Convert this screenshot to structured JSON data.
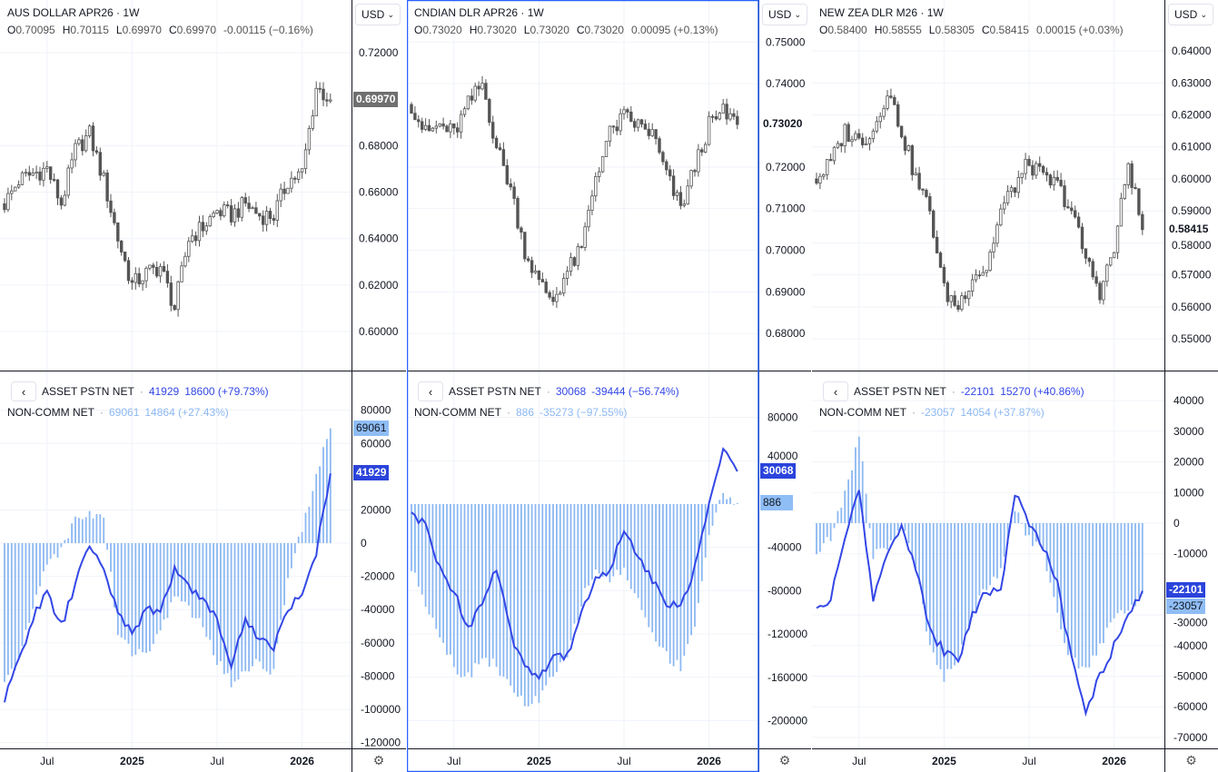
{
  "months": [
    "2024-04",
    "2024-05",
    "2024-06",
    "2024-07",
    "2024-08",
    "2024-09",
    "2024-10",
    "2024-11",
    "2024-12",
    "2025-01",
    "2025-02",
    "2025-03",
    "2025-04",
    "2025-05",
    "2025-06",
    "2025-07",
    "2025-08",
    "2025-09",
    "2025-10",
    "2025-11",
    "2025-12",
    "2026-01",
    "2026-02",
    "2026-03"
  ],
  "colors": {
    "asset_line": "#3347e6",
    "noncomm_bars": "#8cb8f2",
    "candle": "#555555",
    "selected_border": "#2962ff",
    "asset_box": "#2b44db",
    "noncomm_box": "#8fbdf5",
    "last_price_box": "#6f6f6f"
  },
  "icons": {
    "back": "chevron-left-icon",
    "dropdown": "chevron-down-icon",
    "settings": "gear-icon"
  },
  "panes": [
    {
      "symbol": "AUS DOLLAR APR26",
      "interval": "1W",
      "currency": "USD",
      "ohlc": {
        "o_label": "O",
        "o": "0.70095",
        "h_label": "H",
        "h": "0.70115",
        "l_label": "L",
        "l": "0.69970",
        "c_label": "C",
        "c": "0.69970",
        "change": "-0.00115 (−0.16%)"
      },
      "last_price": "0.69970",
      "price_ticks": [
        "0.72000",
        "0.68000",
        "0.66000",
        "0.64000",
        "0.62000",
        "0.60000"
      ],
      "asset": {
        "label": "ASSET PSTN NET",
        "value": "41929",
        "change": "18600 (+79.73%)"
      },
      "noncomm": {
        "label": "NON-COMM NET",
        "value": "69061",
        "change": "14864 (+27.43%)"
      },
      "ind_ticks": [
        "80000",
        "60000",
        "20000",
        "0",
        "-20000",
        "-40000",
        "-60000",
        "-80000",
        "-100000",
        "-120000"
      ],
      "time_labels": [
        "Jul",
        "2025",
        "Jul",
        "2026"
      ]
    },
    {
      "symbol": "CNDIAN DLR APR26",
      "interval": "1W",
      "currency": "USD",
      "ohlc": {
        "o_label": "O",
        "o": "0.73020",
        "h_label": "H",
        "h": "0.73020",
        "l_label": "L",
        "l": "0.73020",
        "c_label": "C",
        "c": "0.73020",
        "change": "0.00095 (+0.13%)"
      },
      "last_price": "0.73020",
      "price_ticks": [
        "0.75000",
        "0.74000",
        "0.72000",
        "0.71000",
        "0.70000",
        "0.69000",
        "0.68000"
      ],
      "asset": {
        "label": "ASSET PSTN NET",
        "value": "30068",
        "change": "-39444 (−56.74%)"
      },
      "noncomm": {
        "label": "NON-COMM NET",
        "value": "886",
        "change": "-35273 (−97.55%)"
      },
      "ind_ticks": [
        "80000",
        "40000",
        "-40000",
        "-80000",
        "-120000",
        "-160000",
        "-200000"
      ],
      "time_labels": [
        "Jul",
        "2025",
        "Jul",
        "2026"
      ]
    },
    {
      "symbol": "NEW ZEA DLR M26",
      "interval": "1W",
      "currency": "USD",
      "ohlc": {
        "o_label": "O",
        "o": "0.58400",
        "h_label": "H",
        "h": "0.58555",
        "l_label": "L",
        "l": "0.58305",
        "c_label": "C",
        "c": "0.58415",
        "change": "0.00015 (+0.03%)"
      },
      "last_price": "0.58415",
      "price_ticks": [
        "0.64000",
        "0.63000",
        "0.62000",
        "0.61000",
        "0.60000",
        "0.59000",
        "0.58000",
        "0.57000",
        "0.56000",
        "0.55000"
      ],
      "asset": {
        "label": "ASSET PSTN NET",
        "value": "-22101",
        "change": "15270 (+40.86%)"
      },
      "noncomm": {
        "label": "NON-COMM NET",
        "value": "-23057",
        "change": "14054 (+37.87%)"
      },
      "ind_ticks": [
        "40000",
        "30000",
        "20000",
        "10000",
        "0",
        "-10000",
        "-30000",
        "-40000",
        "-50000",
        "-60000",
        "-70000"
      ],
      "time_labels": [
        "Jul",
        "2025",
        "Jul",
        "2026"
      ]
    }
  ],
  "chart_data": [
    {
      "type": "candlestick",
      "ylim": [
        0.5832,
        0.7427
      ],
      "ind_ylim": [
        -123500,
        103300
      ],
      "close": [
        0.655,
        0.665,
        0.668,
        0.67,
        0.655,
        0.678,
        0.685,
        0.665,
        0.64,
        0.62,
        0.625,
        0.628,
        0.61,
        0.64,
        0.645,
        0.652,
        0.65,
        0.655,
        0.65,
        0.65,
        0.665,
        0.668,
        0.705,
        0.6997
      ],
      "asset": [
        -95000,
        -70000,
        -45000,
        -30000,
        -50000,
        -25000,
        0,
        -18000,
        -40000,
        -55000,
        -40000,
        -42000,
        -15000,
        -25000,
        -35000,
        -45000,
        -75000,
        -45000,
        -58000,
        -62000,
        -40000,
        -30000,
        -5000,
        41929
      ],
      "noncomm": [
        -85000,
        -70000,
        -40000,
        -10000,
        -5000,
        15000,
        18000,
        15000,
        -55000,
        -65000,
        -65000,
        -55000,
        -30000,
        -40000,
        -50000,
        -70000,
        -85000,
        -75000,
        -72000,
        -78000,
        -20000,
        10000,
        40000,
        69061
      ]
    },
    {
      "type": "candlestick",
      "ylim": [
        0.6711,
        0.7601
      ],
      "ind_ylim": [
        -225600,
        122400
      ],
      "close": [
        0.735,
        0.728,
        0.73,
        0.728,
        0.735,
        0.74,
        0.725,
        0.715,
        0.7,
        0.692,
        0.688,
        0.695,
        0.7,
        0.718,
        0.728,
        0.732,
        0.73,
        0.728,
        0.718,
        0.71,
        0.72,
        0.73,
        0.733,
        0.7302
      ],
      "asset": [
        -10000,
        -20000,
        -60000,
        -80000,
        -115000,
        -90000,
        -60000,
        -120000,
        -150000,
        -160000,
        -140000,
        -140000,
        -100000,
        -70000,
        -60000,
        -25000,
        -50000,
        -70000,
        -90000,
        -95000,
        -60000,
        0,
        50000,
        30068
      ],
      "noncomm": [
        -60000,
        -90000,
        -120000,
        -150000,
        -160000,
        -140000,
        -150000,
        -170000,
        -185000,
        -180000,
        -160000,
        -140000,
        -90000,
        -60000,
        -70000,
        -60000,
        -90000,
        -120000,
        -140000,
        -150000,
        -110000,
        -30000,
        10000,
        886
      ]
    },
    {
      "type": "candlestick",
      "ylim": [
        0.5401,
        0.6559
      ],
      "ind_ylim": [
        -73590,
        49550
      ],
      "close": [
        0.6,
        0.605,
        0.615,
        0.612,
        0.615,
        0.628,
        0.615,
        0.6,
        0.59,
        0.565,
        0.56,
        0.57,
        0.572,
        0.59,
        0.598,
        0.605,
        0.6,
        0.598,
        0.59,
        0.575,
        0.565,
        0.578,
        0.605,
        0.58415
      ],
      "asset": [
        -28000,
        -25000,
        -5000,
        11000,
        -25000,
        -10000,
        0,
        -15000,
        -35000,
        -42000,
        -45000,
        -30000,
        -22000,
        -22000,
        10000,
        0,
        -8000,
        -20000,
        -45000,
        -62000,
        -50000,
        -40000,
        -30000,
        -22101
      ],
      "noncomm": [
        -10000,
        -5000,
        10000,
        28000,
        -10000,
        -8000,
        0,
        -15000,
        -40000,
        -50000,
        -45000,
        -30000,
        -20000,
        -15000,
        5000,
        -5000,
        -10000,
        -30000,
        -45000,
        -48000,
        -40000,
        -30000,
        -28000,
        -23057
      ]
    }
  ]
}
